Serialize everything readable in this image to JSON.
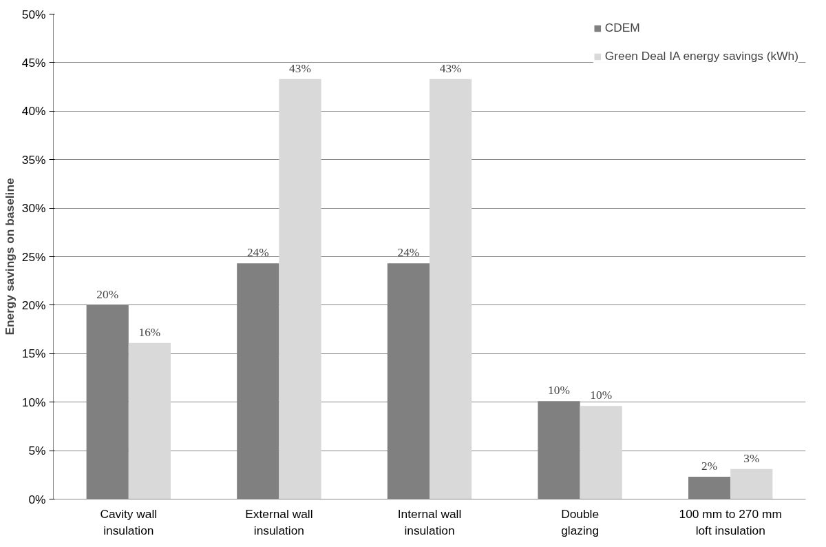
{
  "chart_data": {
    "type": "bar",
    "ylabel": "Energy savings on baseline",
    "categories": [
      "Cavity wall insulation",
      "External wall insulation",
      "Internal wall insulation",
      "Double glazing",
      "100 mm to 270 mm loft insulation"
    ],
    "series": [
      {
        "name": "CDEM",
        "color": "#808080",
        "values": [
          20.0,
          24.3,
          24.3,
          10.1,
          2.3
        ],
        "value_labels": [
          "20%",
          "24%",
          "24%",
          "10%",
          "2%"
        ]
      },
      {
        "name": "Green Deal IA energy savings (kWh)",
        "color": "#d9d9d9",
        "values": [
          16.1,
          43.3,
          43.3,
          9.6,
          3.1
        ],
        "value_labels": [
          "16%",
          "43%",
          "43%",
          "10%",
          "3%"
        ]
      }
    ],
    "ylim": [
      0,
      50
    ],
    "yticks": [
      {
        "value": 0,
        "label": "0%"
      },
      {
        "value": 5,
        "label": "5%"
      },
      {
        "value": 10,
        "label": "10%"
      },
      {
        "value": 15,
        "label": "15%"
      },
      {
        "value": 20,
        "label": "20%"
      },
      {
        "value": 25,
        "label": "25%"
      },
      {
        "value": 30,
        "label": "30%"
      },
      {
        "value": 35,
        "label": "35%"
      },
      {
        "value": 40,
        "label": "40%"
      },
      {
        "value": 45,
        "label": "45%"
      },
      {
        "value": 50,
        "label": "50%"
      }
    ],
    "grid": "y",
    "legend": "top right"
  }
}
